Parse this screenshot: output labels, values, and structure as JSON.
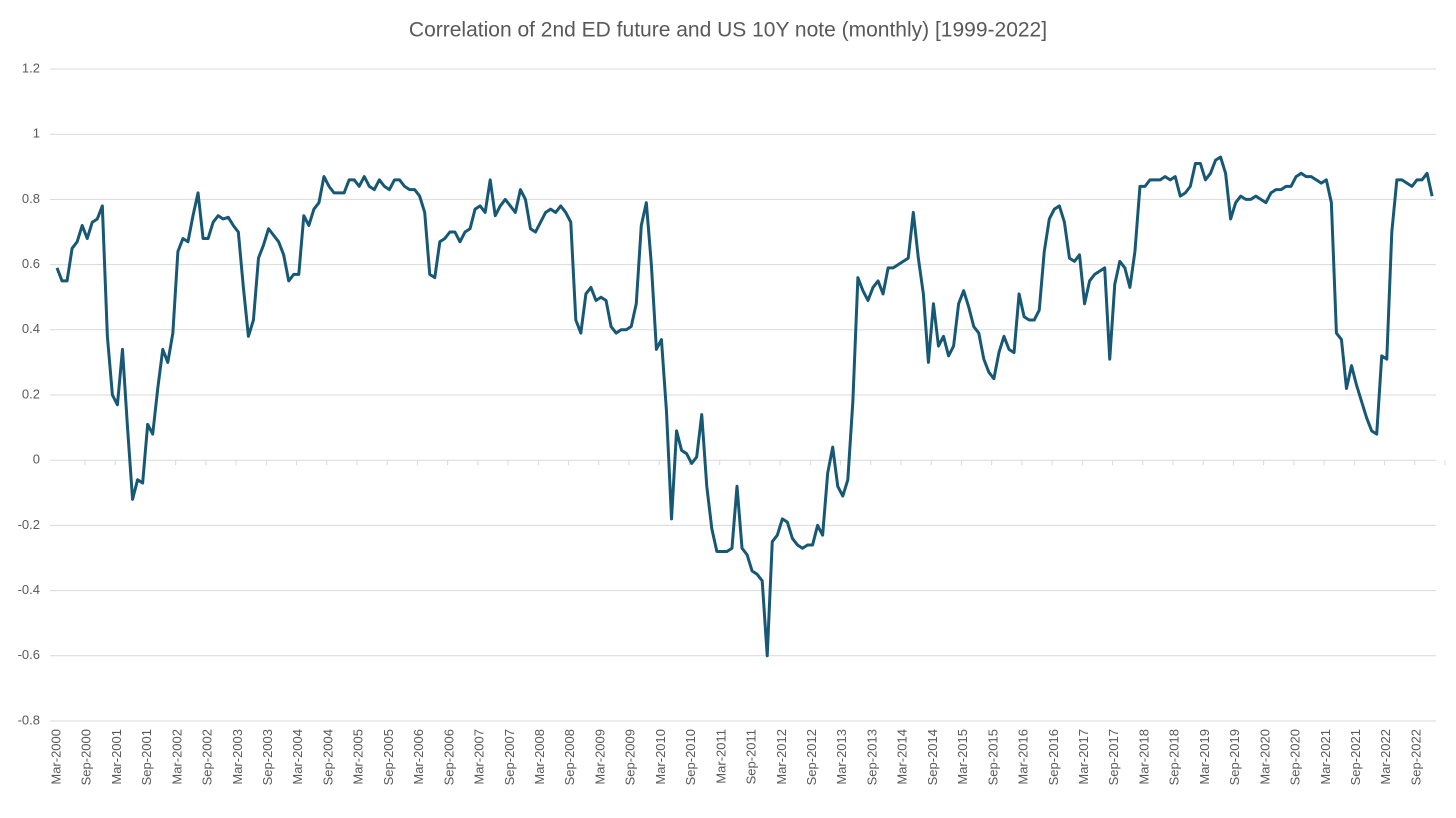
{
  "chart_data": {
    "type": "line",
    "title": "Correlation of 2nd ED future and US 10Y note (monthly) [1999-2022]",
    "categories": [
      "Mar-2000",
      null,
      null,
      null,
      null,
      null,
      "Sep-2000",
      null,
      null,
      null,
      null,
      null,
      "Mar-2001",
      null,
      null,
      null,
      null,
      null,
      "Sep-2001",
      null,
      null,
      null,
      null,
      null,
      "Mar-2002",
      null,
      null,
      null,
      null,
      null,
      "Sep-2002",
      null,
      null,
      null,
      null,
      null,
      "Mar-2003",
      null,
      null,
      null,
      null,
      null,
      "Sep-2003",
      null,
      null,
      null,
      null,
      null,
      "Mar-2004",
      null,
      null,
      null,
      null,
      null,
      "Sep-2004",
      null,
      null,
      null,
      null,
      null,
      "Mar-2005",
      null,
      null,
      null,
      null,
      null,
      "Sep-2005",
      null,
      null,
      null,
      null,
      null,
      "Mar-2006",
      null,
      null,
      null,
      null,
      null,
      "Sep-2006",
      null,
      null,
      null,
      null,
      null,
      "Mar-2007",
      null,
      null,
      null,
      null,
      null,
      "Sep-2007",
      null,
      null,
      null,
      null,
      null,
      "Mar-2008",
      null,
      null,
      null,
      null,
      null,
      "Sep-2008",
      null,
      null,
      null,
      null,
      null,
      "Mar-2009",
      null,
      null,
      null,
      null,
      null,
      "Sep-2009",
      null,
      null,
      null,
      null,
      null,
      "Mar-2010",
      null,
      null,
      null,
      null,
      null,
      "Sep-2010",
      null,
      null,
      null,
      null,
      null,
      "Mar-2011",
      null,
      null,
      null,
      null,
      null,
      "Sep-2011",
      null,
      null,
      null,
      null,
      null,
      "Mar-2012",
      null,
      null,
      null,
      null,
      null,
      "Sep-2012",
      null,
      null,
      null,
      null,
      null,
      "Mar-2013",
      null,
      null,
      null,
      null,
      null,
      "Sep-2013",
      null,
      null,
      null,
      null,
      null,
      "Mar-2014",
      null,
      null,
      null,
      null,
      null,
      "Sep-2014",
      null,
      null,
      null,
      null,
      null,
      "Mar-2015",
      null,
      null,
      null,
      null,
      null,
      "Sep-2015",
      null,
      null,
      null,
      null,
      null,
      "Mar-2016",
      null,
      null,
      null,
      null,
      null,
      "Sep-2016",
      null,
      null,
      null,
      null,
      null,
      "Mar-2017",
      null,
      null,
      null,
      null,
      null,
      "Sep-2017",
      null,
      null,
      null,
      null,
      null,
      "Mar-2018",
      null,
      null,
      null,
      null,
      null,
      "Sep-2018",
      null,
      null,
      null,
      null,
      null,
      "Mar-2019",
      null,
      null,
      null,
      null,
      null,
      "Sep-2019",
      null,
      null,
      null,
      null,
      null,
      "Mar-2020",
      null,
      null,
      null,
      null,
      null,
      "Sep-2020",
      null,
      null,
      null,
      null,
      null,
      "Mar-2021",
      null,
      null,
      null,
      null,
      null,
      "Sep-2021",
      null,
      null,
      null,
      null,
      null,
      "Mar-2022",
      null,
      null,
      null,
      null,
      null,
      "Sep-2022",
      null,
      null,
      null
    ],
    "values": [
      0.59,
      0.55,
      0.55,
      0.65,
      0.67,
      0.72,
      0.68,
      0.73,
      0.74,
      0.78,
      0.38,
      0.2,
      0.17,
      0.34,
      0.1,
      -0.12,
      -0.06,
      -0.07,
      0.11,
      0.08,
      0.22,
      0.34,
      0.3,
      0.39,
      0.64,
      0.68,
      0.67,
      0.75,
      0.82,
      0.68,
      0.68,
      0.73,
      0.75,
      0.74,
      0.745,
      0.72,
      0.7,
      0.53,
      0.38,
      0.43,
      0.62,
      0.66,
      0.71,
      0.69,
      0.67,
      0.63,
      0.55,
      0.57,
      0.57,
      0.75,
      0.72,
      0.77,
      0.79,
      0.87,
      0.84,
      0.82,
      0.82,
      0.82,
      0.86,
      0.86,
      0.84,
      0.87,
      0.84,
      0.83,
      0.86,
      0.84,
      0.83,
      0.86,
      0.86,
      0.84,
      0.83,
      0.83,
      0.81,
      0.76,
      0.57,
      0.56,
      0.67,
      0.68,
      0.7,
      0.7,
      0.67,
      0.7,
      0.71,
      0.77,
      0.78,
      0.76,
      0.86,
      0.75,
      0.78,
      0.8,
      0.78,
      0.76,
      0.83,
      0.8,
      0.71,
      0.7,
      0.73,
      0.76,
      0.77,
      0.76,
      0.78,
      0.76,
      0.73,
      0.43,
      0.39,
      0.51,
      0.53,
      0.49,
      0.5,
      0.49,
      0.41,
      0.39,
      0.4,
      0.4,
      0.41,
      0.48,
      0.72,
      0.79,
      0.6,
      0.34,
      0.37,
      0.15,
      -0.18,
      0.09,
      0.03,
      0.02,
      -0.01,
      0.01,
      0.14,
      -0.08,
      -0.21,
      -0.28,
      -0.28,
      -0.28,
      -0.27,
      -0.08,
      -0.27,
      -0.29,
      -0.34,
      -0.35,
      -0.37,
      -0.6,
      -0.25,
      -0.23,
      -0.18,
      -0.19,
      -0.24,
      -0.26,
      -0.27,
      -0.26,
      -0.26,
      -0.2,
      -0.23,
      -0.04,
      0.04,
      -0.08,
      -0.11,
      -0.06,
      0.18,
      0.56,
      0.52,
      0.49,
      0.53,
      0.55,
      0.51,
      0.59,
      0.59,
      0.6,
      0.61,
      0.62,
      0.76,
      0.62,
      0.51,
      0.3,
      0.48,
      0.35,
      0.38,
      0.32,
      0.35,
      0.48,
      0.52,
      0.47,
      0.41,
      0.39,
      0.31,
      0.27,
      0.25,
      0.33,
      0.38,
      0.34,
      0.33,
      0.51,
      0.44,
      0.43,
      0.43,
      0.46,
      0.64,
      0.74,
      0.77,
      0.78,
      0.73,
      0.62,
      0.61,
      0.63,
      0.48,
      0.55,
      0.57,
      0.58,
      0.59,
      0.31,
      0.54,
      0.61,
      0.59,
      0.53,
      0.64,
      0.84,
      0.84,
      0.86,
      0.86,
      0.86,
      0.87,
      0.86,
      0.87,
      0.81,
      0.82,
      0.84,
      0.91,
      0.91,
      0.86,
      0.88,
      0.92,
      0.93,
      0.88,
      0.74,
      0.79,
      0.81,
      0.8,
      0.8,
      0.81,
      0.8,
      0.79,
      0.82,
      0.83,
      0.83,
      0.84,
      0.84,
      0.87,
      0.88,
      0.87,
      0.87,
      0.86,
      0.85,
      0.86,
      0.79,
      0.39,
      0.37,
      0.22,
      0.29,
      0.23,
      0.18,
      0.13,
      0.09,
      0.08,
      0.32,
      0.31,
      0.7,
      0.86,
      0.86,
      0.85,
      0.84,
      0.86,
      0.86,
      0.88,
      0.81
    ],
    "color": "#175874",
    "ylim": [
      -0.8,
      1.2
    ],
    "yticks": [
      -0.8,
      -0.6,
      -0.4,
      -0.2,
      0,
      0.2,
      0.4,
      0.6,
      0.8,
      1,
      1.2
    ],
    "grid": true
  }
}
